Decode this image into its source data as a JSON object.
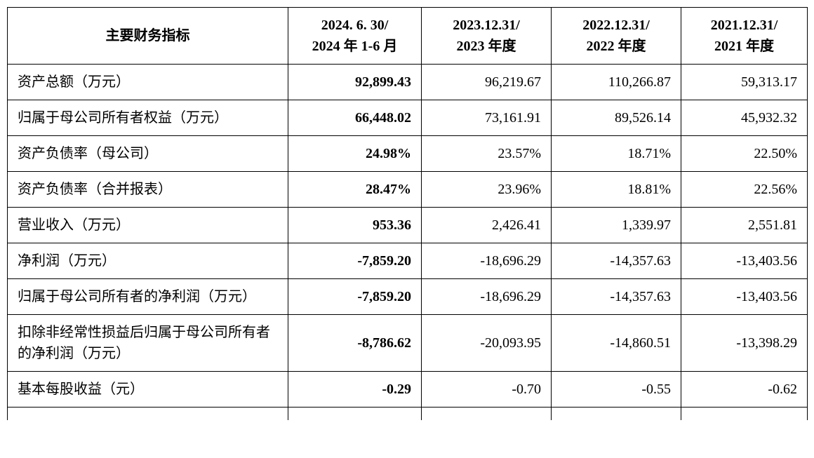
{
  "headers": {
    "indicator": "主要财务指标",
    "col1_line1": "2024. 6. 30/",
    "col1_line2": "2024 年 1-6 月",
    "col2_line1": "2023.12.31/",
    "col2_line2": "2023 年度",
    "col3_line1": "2022.12.31/",
    "col3_line2": "2022 年度",
    "col4_line1": "2021.12.31/",
    "col4_line2": "2021 年度"
  },
  "rows": [
    {
      "label": "资产总额（万元）",
      "v1": "92,899.43",
      "v2": "96,219.67",
      "v3": "110,266.87",
      "v4": "59,313.17"
    },
    {
      "label": "归属于母公司所有者权益（万元）",
      "v1": "66,448.02",
      "v2": "73,161.91",
      "v3": "89,526.14",
      "v4": "45,932.32"
    },
    {
      "label": "资产负债率（母公司）",
      "v1": "24.98%",
      "v2": "23.57%",
      "v3": "18.71%",
      "v4": "22.50%"
    },
    {
      "label": "资产负债率（合并报表）",
      "v1": "28.47%",
      "v2": "23.96%",
      "v3": "18.81%",
      "v4": "22.56%"
    },
    {
      "label": "营业收入（万元）",
      "v1": "953.36",
      "v2": "2,426.41",
      "v3": "1,339.97",
      "v4": "2,551.81"
    },
    {
      "label": "净利润（万元）",
      "v1": "-7,859.20",
      "v2": "-18,696.29",
      "v3": "-14,357.63",
      "v4": "-13,403.56"
    },
    {
      "label": "归属于母公司所有者的净利润（万元）",
      "v1": "-7,859.20",
      "v2": "-18,696.29",
      "v3": "-14,357.63",
      "v4": "-13,403.56"
    },
    {
      "label": "扣除非经常性损益后归属于母公司所有者的净利润（万元）",
      "v1": "-8,786.62",
      "v2": "-20,093.95",
      "v3": "-14,860.51",
      "v4": "-13,398.29"
    },
    {
      "label": "基本每股收益（元）",
      "v1": "-0.29",
      "v2": "-0.70",
      "v3": "-0.55",
      "v4": "-0.62"
    }
  ]
}
